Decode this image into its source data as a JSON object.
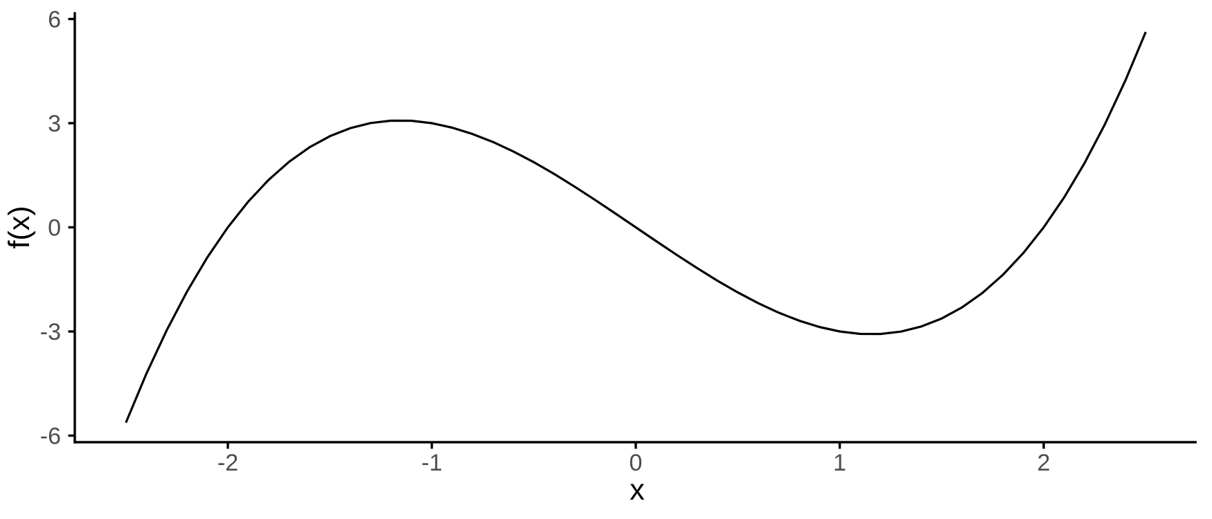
{
  "chart_data": {
    "type": "line",
    "title": "",
    "xlabel": "x",
    "ylabel": "f(x)",
    "x_tick_labels": [
      "-2",
      "-1",
      "0",
      "1",
      "2"
    ],
    "x_tick_values": [
      -2,
      -1,
      0,
      1,
      2
    ],
    "y_tick_labels": [
      "-6",
      "-3",
      "0",
      "3",
      "6"
    ],
    "y_tick_values": [
      -6,
      -3,
      0,
      3,
      6
    ],
    "xlim": [
      -2.75,
      2.75
    ],
    "ylim": [
      -6.2,
      6.2
    ],
    "grid": false,
    "legend": false,
    "x": [
      -2.5,
      -2.4,
      -2.3,
      -2.2,
      -2.1,
      -2.0,
      -1.9,
      -1.8,
      -1.7,
      -1.6,
      -1.5,
      -1.4,
      -1.3,
      -1.2,
      -1.1,
      -1.0,
      -0.9,
      -0.8,
      -0.7,
      -0.6,
      -0.5,
      -0.4,
      -0.3,
      -0.2,
      -0.1,
      0.0,
      0.1,
      0.2,
      0.3,
      0.4,
      0.5,
      0.6,
      0.7,
      0.8,
      0.9,
      1.0,
      1.1,
      1.2,
      1.3,
      1.4,
      1.5,
      1.6,
      1.7,
      1.8,
      1.9,
      2.0,
      2.1,
      2.2,
      2.3,
      2.4,
      2.5
    ],
    "y": [
      -5.625,
      -4.224,
      -2.967,
      -1.848,
      -0.861,
      0.0,
      0.741,
      1.368,
      1.887,
      2.304,
      2.625,
      2.856,
      3.003,
      3.072,
      3.069,
      3.0,
      2.871,
      2.688,
      2.457,
      2.184,
      1.875,
      1.536,
      1.173,
      0.792,
      0.399,
      0.0,
      -0.399,
      -0.792,
      -1.173,
      -1.536,
      -1.875,
      -2.184,
      -2.457,
      -2.688,
      -2.871,
      -3.0,
      -3.069,
      -3.072,
      -3.003,
      -2.856,
      -2.625,
      -2.304,
      -1.887,
      -1.368,
      -0.741,
      0.0,
      0.861,
      1.848,
      2.967,
      4.224,
      5.625
    ],
    "line_color": "#000000",
    "line_width": 3.2,
    "axis_line_color": "#000000",
    "axis_line_width": 3.4,
    "tick_length": 9.5,
    "tick_label_color": "#4D4D4D",
    "axis_title_color": "#000000",
    "background_color": "#FFFFFF"
  }
}
